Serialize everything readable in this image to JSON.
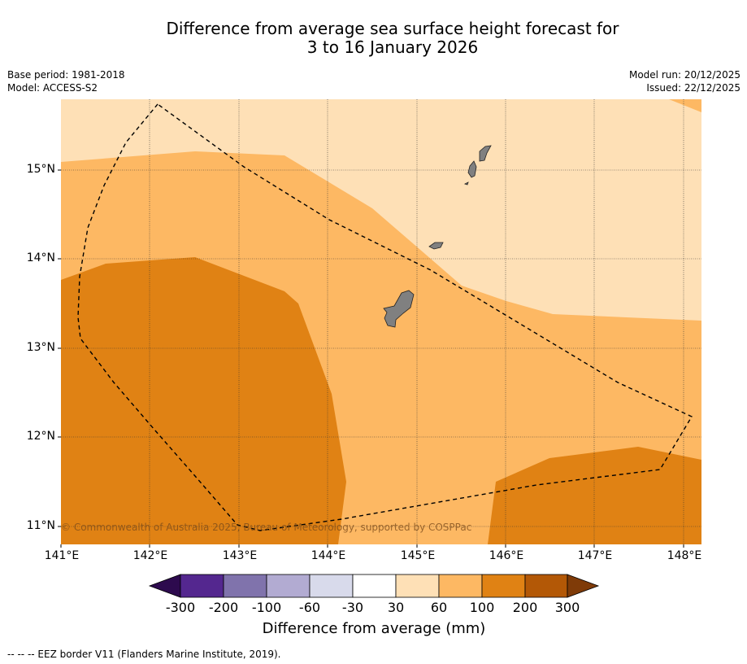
{
  "title": {
    "line1": "Difference from average sea surface height forecast for",
    "line2": "3 to 16 January 2026"
  },
  "meta": {
    "base_period": "Base period: 1981-2018",
    "model": "Model: ACCESS-S2",
    "model_run": "Model run: 20/12/2025",
    "issued": "Issued: 22/12/2025"
  },
  "map": {
    "lat_labels": [
      "15°N",
      "14°N",
      "13°N",
      "12°N",
      "11°N"
    ],
    "lon_labels": [
      "141°E",
      "142°E",
      "143°E",
      "144°E",
      "145°E",
      "146°E",
      "147°E",
      "148°E"
    ],
    "copyright": "© Commonwealth of Australia 2025, Bureau of Meteorology, supported by COSPPac",
    "land_color": "#808080",
    "eez_line_color": "#000000"
  },
  "colorbar": {
    "title": "Difference from average (mm)",
    "ticks": [
      "-300",
      "-200",
      "-100",
      "-60",
      "-30",
      "30",
      "60",
      "100",
      "200",
      "300"
    ],
    "colors": {
      "below_min": "#2d0a4e",
      "c1": "#54278f",
      "c2": "#8073ac",
      "c3": "#b2abd2",
      "c4": "#d8daeb",
      "c5": "#ffffff",
      "c6": "#fee0b6",
      "c7": "#fdb863",
      "c8": "#e08214",
      "c9": "#b35806",
      "above_max": "#7f3b08"
    }
  },
  "footer": {
    "legend": "--  --  -- EEZ border V11 (Flanders Marine Institute, 2019)."
  }
}
